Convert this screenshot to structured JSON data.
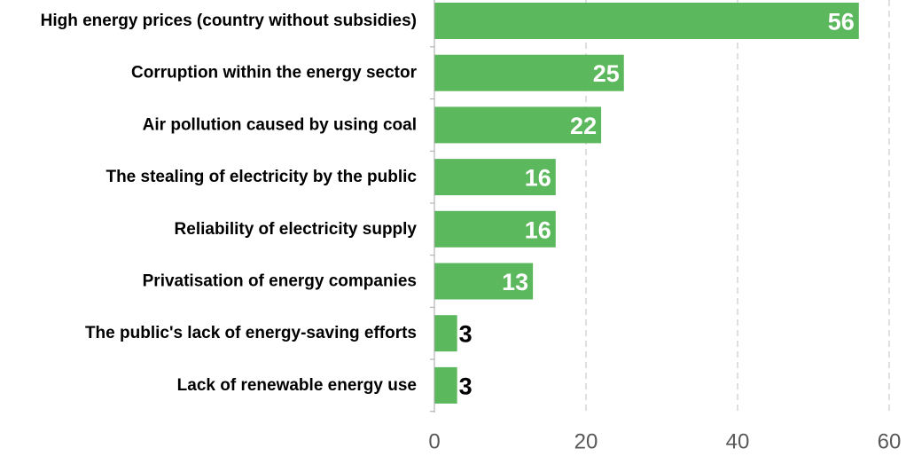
{
  "chart_data": {
    "type": "bar",
    "orientation": "horizontal",
    "categories": [
      "High energy prices (country without subsidies)",
      "Corruption within the energy sector",
      "Air pollution caused by using coal",
      "The stealing of electricity by the public",
      "Reliability of electricity supply",
      "Privatisation of energy companies",
      "The public's lack of energy-saving efforts",
      "Lack of renewable energy use"
    ],
    "values": [
      56,
      25,
      22,
      16,
      16,
      13,
      3,
      3
    ],
    "data_labels": [
      "56",
      "25",
      "22",
      "16",
      "16",
      "13",
      "3",
      "3"
    ],
    "x_ticks": [
      "0",
      "20",
      "40",
      "60"
    ],
    "xlim": [
      0,
      60
    ],
    "title": "",
    "xlabel": "",
    "ylabel": "",
    "grid": "vertical dashed",
    "legend": "none",
    "colors": {
      "bar": "#5cb85c",
      "label_inside": "#ffffff",
      "label_outside": "#000000",
      "grid": "#bfbfbf",
      "axis": "#a6a6a6",
      "category_text": "#000000",
      "tick_text": "#595959"
    }
  }
}
